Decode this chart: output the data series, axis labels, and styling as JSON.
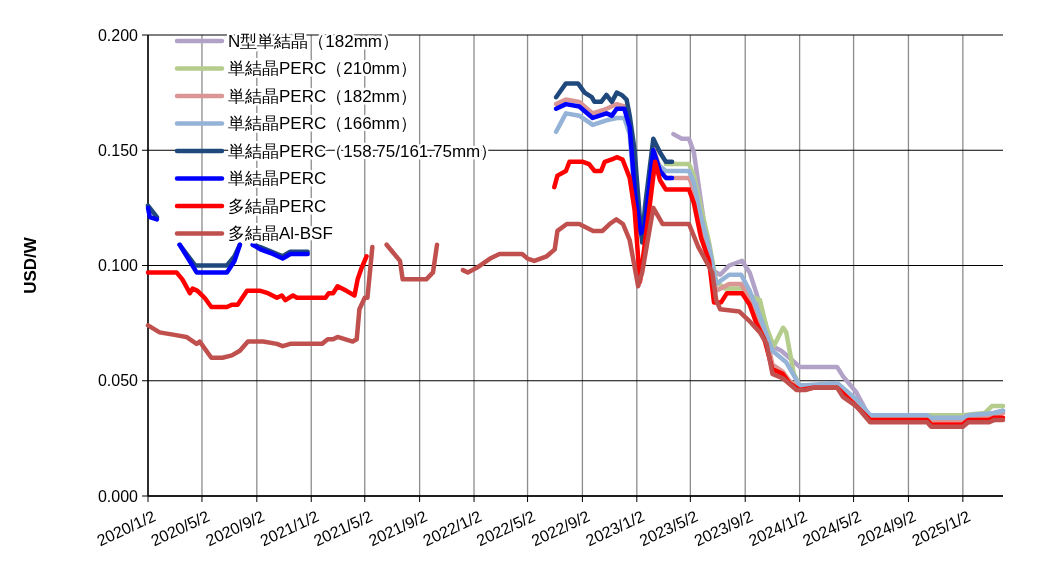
{
  "chart_data": {
    "type": "line",
    "ylabel": "USD/W",
    "legend": "top left",
    "grid": true,
    "xlim": [
      "2020-01-02",
      "2025-04-02"
    ],
    "xticks": [
      {
        "value": "2020-01-02",
        "label": "2020/1/2"
      },
      {
        "value": "2020-05-02",
        "label": "2020/5/2"
      },
      {
        "value": "2020-09-02",
        "label": "2020/9/2"
      },
      {
        "value": "2021-01-02",
        "label": "2021/1/2"
      },
      {
        "value": "2021-05-02",
        "label": "2021/5/2"
      },
      {
        "value": "2021-09-02",
        "label": "2021/9/2"
      },
      {
        "value": "2022-01-02",
        "label": "2022/1/2"
      },
      {
        "value": "2022-05-02",
        "label": "2022/5/2"
      },
      {
        "value": "2022-09-02",
        "label": "2022/9/2"
      },
      {
        "value": "2023-01-02",
        "label": "2023/1/2"
      },
      {
        "value": "2023-05-02",
        "label": "2023/5/2"
      },
      {
        "value": "2023-09-02",
        "label": "2023/9/2"
      },
      {
        "value": "2024-01-02",
        "label": "2024/1/2"
      },
      {
        "value": "2024-05-02",
        "label": "2024/5/2"
      },
      {
        "value": "2024-09-02",
        "label": "2024/9/2"
      },
      {
        "value": "2025-01-02",
        "label": "2025/1/2"
      }
    ],
    "ylim": [
      0,
      0.2
    ],
    "yticks": [
      {
        "value": 0,
        "label": "0.000"
      },
      {
        "value": 0.05,
        "label": "0.050"
      },
      {
        "value": 0.1,
        "label": "0.100"
      },
      {
        "value": 0.15,
        "label": "0.150"
      },
      {
        "value": 0.2,
        "label": "0.200"
      }
    ],
    "series": [
      {
        "name": "N型単結晶（182mm）",
        "color": "#b3a2c7",
        "x": [
          "2023-03-25",
          "2023-04-13",
          "2023-04-29",
          "2023-05-10",
          "2023-06-05",
          "2023-06-20",
          "2023-07-08",
          "2023-07-28",
          "2023-08-26",
          "2023-09-12",
          "2023-09-27",
          "2023-10-20",
          "2023-11-02",
          "2023-11-22",
          "2023-12-10",
          "2024-01-02",
          "2024-03-26",
          "2024-04-08",
          "2024-05-08",
          "2024-06-02",
          "2024-06-08",
          "2024-08-20",
          "2024-10-11",
          "2024-10-29",
          "2025-02-17",
          "2025-04-02"
        ],
        "values": [
          0.157,
          0.155,
          0.155,
          0.149,
          0.114,
          0.098,
          0.096,
          0.1,
          0.102,
          0.097,
          0.088,
          0.073,
          0.065,
          0.063,
          0.06,
          0.056,
          0.056,
          0.052,
          0.045,
          0.036,
          0.034,
          0.034,
          0.033,
          0.034,
          0.035,
          0.037
        ]
      },
      {
        "name": "単結晶PERC（210mm）",
        "color": "#b4cc8c",
        "x": [
          "2023-03-08",
          "2023-04-29",
          "2023-05-10",
          "2023-05-26",
          "2023-06-13",
          "2023-06-29",
          "2023-07-18",
          "2023-08-26",
          "2023-09-12",
          "2023-10-05",
          "2023-10-20",
          "2023-11-05",
          "2023-11-26",
          "2023-12-03",
          "2023-12-20",
          "2024-01-02",
          "2024-03-26",
          "2024-05-08",
          "2024-06-08",
          "2025-01-02",
          "2025-02-20",
          "2025-03-08",
          "2025-04-02"
        ],
        "values": [
          0.144,
          0.144,
          0.139,
          0.125,
          0.11,
          0.093,
          0.09,
          0.09,
          0.087,
          0.085,
          0.073,
          0.065,
          0.073,
          0.071,
          0.053,
          0.048,
          0.048,
          0.041,
          0.035,
          0.035,
          0.036,
          0.039,
          0.039
        ]
      },
      {
        "name": "単結晶PERC（182mm）",
        "color": "#d99694",
        "x": [
          "2022-07-05",
          "2022-07-27",
          "2022-08-26",
          "2022-09-25",
          "2022-10-26",
          "2022-11-18",
          "2022-12-05",
          "2022-12-17",
          "2022-12-29",
          "2023-01-11",
          "2023-01-20",
          "2023-02-08",
          "2023-02-23",
          "2023-03-08",
          "2023-04-29",
          "2023-05-10",
          "2023-05-26",
          "2023-06-13",
          "2023-06-29",
          "2023-07-28",
          "2023-08-24",
          "2023-09-12",
          "2023-10-05",
          "2023-10-20",
          "2023-11-02",
          "2023-11-25",
          "2023-12-10",
          "2024-01-02",
          "2024-03-26",
          "2024-05-08",
          "2024-06-08",
          "2024-10-14",
          "2024-10-23",
          "2025-01-02",
          "2025-01-14",
          "2025-03-14",
          "2025-04-02"
        ],
        "values": [
          0.17,
          0.172,
          0.171,
          0.166,
          0.168,
          0.17,
          0.169,
          null,
          null,
          null,
          null,
          0.151,
          0.142,
          0.138,
          0.138,
          0.133,
          0.118,
          0.105,
          0.089,
          0.092,
          0.092,
          0.085,
          0.076,
          0.069,
          0.057,
          0.054,
          0.05,
          0.047,
          0.048,
          0.04,
          0.034,
          0.034,
          0.033,
          0.033,
          0.034,
          0.035,
          0.036
        ]
      },
      {
        "name": "単結晶PERC（166mm）",
        "color": "#95b3d7",
        "x": [
          "2022-07-05",
          "2022-07-27",
          "2022-08-26",
          "2022-09-25",
          "2022-10-26",
          "2022-11-18",
          "2022-12-05",
          "2022-12-17",
          "2022-12-29",
          "2023-01-11",
          "2023-01-20",
          "2023-02-08",
          "2023-02-23",
          "2023-03-08",
          "2023-04-29",
          "2023-05-10",
          "2023-05-26",
          "2023-06-13",
          "2023-06-29",
          "2023-07-28",
          "2023-08-24",
          "2023-09-12",
          "2023-10-05",
          "2023-11-02",
          "2023-12-03",
          "2024-01-02",
          "2024-01-17",
          "2024-03-26",
          "2024-05-08",
          "2024-06-08",
          "2024-10-14",
          "2024-10-23",
          "2025-01-02",
          "2025-01-14",
          "2025-03-14",
          "2025-04-02"
        ],
        "values": [
          0.158,
          0.166,
          0.165,
          0.161,
          0.163,
          0.164,
          0.164,
          0.157,
          0.128,
          0.113,
          null,
          0.148,
          0.143,
          0.141,
          0.141,
          0.136,
          0.121,
          0.108,
          0.092,
          0.096,
          0.096,
          0.089,
          0.078,
          0.063,
          0.058,
          0.048,
          0.048,
          0.049,
          0.042,
          0.035,
          0.035,
          0.034,
          0.034,
          0.035,
          0.036,
          0.037
        ]
      },
      {
        "name": "単結晶PERC（158.75/161.75mm）",
        "color": "#1f497d",
        "x": [
          "2020-01-02",
          "2020-01-22",
          "2020-02-10",
          "2020-03-13",
          "2020-04-17",
          "2020-06-27",
          "2020-07-14",
          "2020-07-26",
          "2020-08-03",
          "2020-08-24",
          "2020-09-10",
          "2020-10-30",
          "2020-11-16",
          "2020-12-25",
          "2021-03-01",
          "2022-07-05",
          "2022-07-27",
          "2022-08-23",
          "2022-09-07",
          "2022-09-23",
          "2022-09-29",
          "2022-10-14",
          "2022-10-26",
          "2022-11-07",
          "2022-11-18",
          "2022-11-29",
          "2022-12-10",
          "2022-12-17",
          "2022-12-28",
          "2023-01-09",
          "2023-01-14",
          "2023-01-20",
          "2023-02-08",
          "2023-02-23",
          "2023-03-08",
          "2023-03-22"
        ],
        "values": [
          0.126,
          0.121,
          null,
          0.109,
          0.1,
          0.1,
          0.104,
          0.109,
          null,
          0.109,
          0.108,
          0.104,
          0.106,
          0.106,
          null,
          0.173,
          0.179,
          0.179,
          0.175,
          0.173,
          0.171,
          0.171,
          0.174,
          0.171,
          0.175,
          0.174,
          0.172,
          0.165,
          0.15,
          0.12,
          0.11,
          0.125,
          0.155,
          0.149,
          0.145,
          0.145
        ]
      },
      {
        "name": "単結晶PERC",
        "color": "#0000ff",
        "x": [
          "2020-01-02",
          "2020-01-06",
          "2020-01-22",
          "2020-02-10",
          "2020-03-13",
          "2020-04-20",
          "2020-06-27",
          "2020-07-14",
          "2020-07-26",
          "2020-08-03",
          "2020-08-24",
          "2020-09-10",
          "2020-10-08",
          "2020-10-30",
          "2020-11-16",
          "2020-12-01",
          "2020-12-25",
          "2021-03-01",
          "2022-07-05",
          "2022-07-27",
          "2022-08-26",
          "2022-09-25",
          "2022-10-26",
          "2022-11-07",
          "2022-11-18",
          "2022-12-05",
          "2022-12-17",
          "2022-12-29",
          "2023-01-11",
          "2023-01-20",
          "2023-02-08",
          "2023-02-23",
          "2023-03-08",
          "2023-03-22"
        ],
        "values": [
          0.125,
          0.121,
          0.12,
          null,
          0.109,
          0.097,
          0.097,
          0.102,
          0.109,
          null,
          0.109,
          0.107,
          0.105,
          0.103,
          0.105,
          0.105,
          0.105,
          null,
          0.168,
          0.17,
          0.169,
          0.164,
          0.166,
          0.165,
          0.168,
          0.168,
          0.16,
          0.131,
          0.114,
          0.117,
          0.15,
          0.141,
          0.138,
          0.138
        ]
      },
      {
        "name": "多結晶PERC",
        "color": "#ff0000",
        "x": [
          "2020-01-02",
          "2020-03-06",
          "2020-03-19",
          "2020-04-05",
          "2020-04-11",
          "2020-04-22",
          "2020-05-08",
          "2020-05-23",
          "2020-06-27",
          "2020-07-08",
          "2020-07-21",
          "2020-08-11",
          "2020-09-10",
          "2020-09-27",
          "2020-10-17",
          "2020-10-28",
          "2020-11-05",
          "2020-11-22",
          "2020-12-01",
          "2021-02-03",
          "2021-02-10",
          "2021-02-20",
          "2021-03-02",
          "2021-03-22",
          "2021-04-09",
          "2021-04-16",
          "2021-04-25",
          "2021-05-06",
          "2021-05-20",
          "2022-07-01",
          "2022-07-08",
          "2022-07-27",
          "2022-08-04",
          "2022-09-03",
          "2022-09-17",
          "2022-09-29",
          "2022-10-14",
          "2022-10-22",
          "2022-11-07",
          "2022-11-18",
          "2022-12-01",
          "2022-12-17",
          "2022-12-28",
          "2023-01-09",
          "2023-01-27",
          "2023-02-12",
          "2023-02-23",
          "2023-03-08",
          "2023-04-29",
          "2023-05-10",
          "2023-05-26",
          "2023-06-13",
          "2023-06-24",
          "2023-07-10",
          "2023-07-23",
          "2023-08-26",
          "2023-09-12",
          "2023-09-27",
          "2023-10-15",
          "2023-11-02",
          "2023-11-25",
          "2023-12-10",
          "2024-01-02",
          "2024-02-02",
          "2024-03-26",
          "2024-05-08",
          "2024-06-08",
          "2024-10-14",
          "2024-10-23",
          "2025-01-02",
          "2025-01-14",
          "2025-03-02",
          "2025-03-14",
          "2025-04-02"
        ],
        "values": [
          0.097,
          0.097,
          0.094,
          0.088,
          0.09,
          0.089,
          0.086,
          0.082,
          0.082,
          0.083,
          0.083,
          0.089,
          0.089,
          0.088,
          0.086,
          0.087,
          0.085,
          0.087,
          0.086,
          0.086,
          0.088,
          0.088,
          0.091,
          0.089,
          0.087,
          0.094,
          0.099,
          0.104,
          null,
          0.134,
          0.139,
          0.141,
          0.145,
          0.145,
          0.144,
          0.141,
          0.141,
          0.145,
          0.146,
          0.147,
          0.146,
          0.138,
          0.124,
          0.093,
          0.12,
          0.145,
          0.137,
          0.133,
          0.133,
          0.127,
          0.112,
          0.102,
          0.084,
          0.084,
          0.088,
          0.088,
          0.083,
          0.075,
          0.068,
          0.055,
          0.053,
          0.049,
          0.046,
          0.047,
          0.047,
          0.039,
          0.033,
          0.033,
          0.031,
          0.031,
          0.033,
          0.033,
          0.034,
          0.034
        ]
      },
      {
        "name": "多結晶Al-BSF",
        "color": "#c0504d",
        "x": [
          "2020-01-02",
          "2020-01-28",
          "2020-02-27",
          "2020-03-28",
          "2020-04-20",
          "2020-04-27",
          "2020-05-23",
          "2020-06-17",
          "2020-07-08",
          "2020-07-26",
          "2020-08-13",
          "2020-09-16",
          "2020-10-17",
          "2020-10-30",
          "2020-11-16",
          "2020-12-01",
          "2021-01-26",
          "2021-02-08",
          "2021-02-20",
          "2021-03-02",
          "2021-04-05",
          "2021-04-14",
          "2021-04-20",
          "2021-05-02",
          "2021-05-08",
          "2021-05-19",
          "2021-06-01",
          "2021-06-20",
          "2021-07-20",
          "2021-07-26",
          "2021-09-17",
          "2021-10-02",
          "2021-10-11",
          "2021-11-01",
          "2021-12-08",
          "2021-12-19",
          "2022-01-08",
          "2022-02-07",
          "2022-02-28",
          "2022-04-20",
          "2022-05-02",
          "2022-05-17",
          "2022-06-14",
          "2022-07-02",
          "2022-07-08",
          "2022-07-29",
          "2022-08-26",
          "2022-09-26",
          "2022-10-17",
          "2022-11-02",
          "2022-11-17",
          "2022-12-02",
          "2022-12-17",
          "2023-01-05",
          "2023-01-14",
          "2023-02-08",
          "2023-03-01",
          "2023-04-29",
          "2023-05-20",
          "2023-06-20",
          "2023-06-29",
          "2023-07-08",
          "2023-08-20",
          "2023-09-11",
          "2023-10-05",
          "2023-10-20",
          "2023-11-02",
          "2023-11-26",
          "2023-12-26",
          "2024-01-17",
          "2024-02-02",
          "2024-03-26",
          "2024-04-08",
          "2024-05-08",
          "2024-06-08",
          "2024-08-08",
          "2024-08-20",
          "2024-10-14",
          "2024-10-23",
          "2025-01-02",
          "2025-01-14",
          "2025-03-02",
          "2025-03-14",
          "2025-04-02"
        ],
        "values": [
          0.074,
          0.071,
          0.07,
          0.069,
          0.066,
          0.067,
          0.06,
          0.06,
          0.061,
          0.063,
          0.067,
          0.067,
          0.066,
          0.065,
          0.066,
          0.066,
          0.066,
          0.068,
          0.068,
          0.069,
          0.067,
          0.068,
          0.081,
          0.086,
          0.086,
          0.108,
          null,
          0.109,
          0.102,
          0.094,
          0.094,
          0.097,
          0.109,
          null,
          0.098,
          0.097,
          0.099,
          0.103,
          0.105,
          0.105,
          0.103,
          0.102,
          0.104,
          0.107,
          0.115,
          0.118,
          0.118,
          0.115,
          0.115,
          0.118,
          0.12,
          0.118,
          0.111,
          0.091,
          0.097,
          0.125,
          0.118,
          0.118,
          0.108,
          0.097,
          0.085,
          0.081,
          0.08,
          0.076,
          0.071,
          0.066,
          0.053,
          0.051,
          0.046,
          0.046,
          0.047,
          0.047,
          0.043,
          0.039,
          0.032,
          0.032,
          0.032,
          0.032,
          0.03,
          0.03,
          0.032,
          0.032,
          0.033,
          0.033
        ]
      }
    ]
  }
}
